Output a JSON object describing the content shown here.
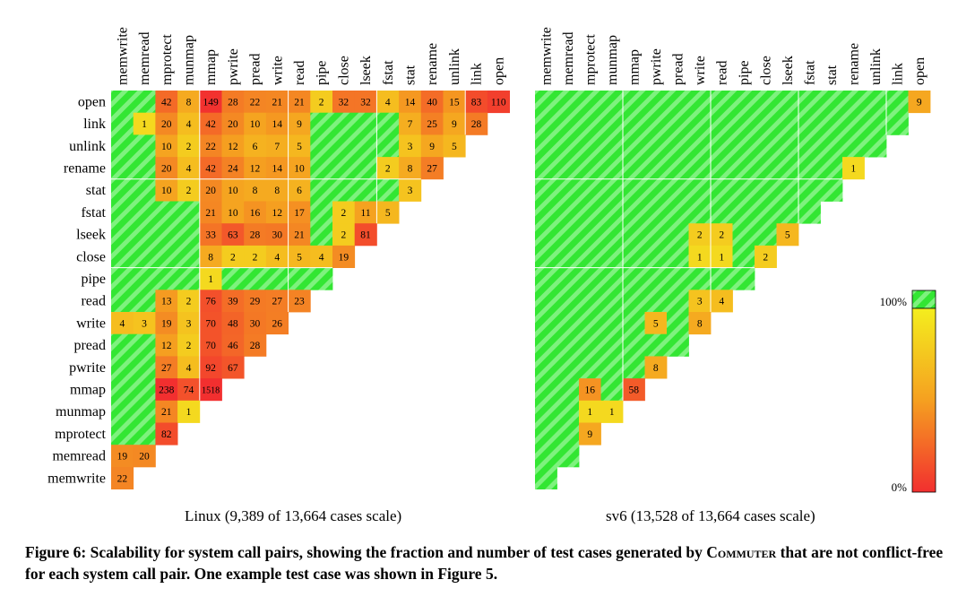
{
  "chart_data": [
    {
      "type": "heatmap",
      "title": "Linux (9,389 of 13,664 cases scale)",
      "rows": [
        "open",
        "link",
        "unlink",
        "rename",
        "stat",
        "fstat",
        "lseek",
        "close",
        "pipe",
        "read",
        "write",
        "pread",
        "pwrite",
        "mmap",
        "munmap",
        "mprotect",
        "memread",
        "memwrite"
      ],
      "columns": [
        "memwrite",
        "memread",
        "mprotect",
        "munmap",
        "mmap",
        "pwrite",
        "pread",
        "write",
        "read",
        "pipe",
        "close",
        "lseek",
        "fstat",
        "stat",
        "rename",
        "unlink",
        "link",
        "open"
      ],
      "cells": [
        [
          null,
          null,
          42,
          8,
          149,
          28,
          22,
          21,
          21,
          2,
          32,
          32,
          4,
          14,
          40,
          15,
          83,
          110
        ],
        [
          null,
          1,
          20,
          4,
          42,
          20,
          10,
          14,
          9,
          null,
          null,
          null,
          null,
          7,
          25,
          9,
          28
        ],
        [
          null,
          null,
          10,
          2,
          22,
          12,
          6,
          7,
          5,
          null,
          null,
          null,
          null,
          3,
          9,
          5
        ],
        [
          null,
          null,
          20,
          4,
          42,
          24,
          12,
          14,
          10,
          null,
          null,
          null,
          2,
          8,
          27
        ],
        [
          null,
          null,
          10,
          2,
          20,
          10,
          8,
          8,
          6,
          null,
          null,
          null,
          null,
          3
        ],
        [
          null,
          null,
          null,
          null,
          21,
          10,
          16,
          12,
          17,
          null,
          2,
          11,
          5
        ],
        [
          null,
          null,
          null,
          null,
          33,
          63,
          28,
          30,
          21,
          null,
          2,
          81
        ],
        [
          null,
          null,
          null,
          null,
          8,
          2,
          2,
          4,
          5,
          4,
          19
        ],
        [
          null,
          null,
          null,
          null,
          1,
          null,
          null,
          null,
          null,
          null
        ],
        [
          null,
          null,
          13,
          2,
          76,
          39,
          29,
          27,
          23
        ],
        [
          4,
          3,
          19,
          3,
          70,
          48,
          30,
          26
        ],
        [
          null,
          null,
          12,
          2,
          70,
          46,
          28
        ],
        [
          null,
          null,
          27,
          4,
          92,
          67
        ],
        [
          null,
          null,
          238,
          74,
          1518
        ],
        [
          null,
          null,
          21,
          1
        ],
        [
          null,
          null,
          82
        ],
        [
          19,
          20
        ],
        [
          22
        ]
      ]
    },
    {
      "type": "heatmap",
      "title": "sv6 (13,528 of 13,664 cases scale)",
      "rows": [
        "open",
        "link",
        "unlink",
        "rename",
        "stat",
        "fstat",
        "lseek",
        "close",
        "pipe",
        "read",
        "write",
        "pread",
        "pwrite",
        "mmap",
        "munmap",
        "mprotect",
        "memread",
        "memwrite"
      ],
      "columns": [
        "memwrite",
        "memread",
        "mprotect",
        "munmap",
        "mmap",
        "pwrite",
        "pread",
        "write",
        "read",
        "pipe",
        "close",
        "lseek",
        "fstat",
        "stat",
        "rename",
        "unlink",
        "link",
        "open"
      ],
      "cells": [
        [
          null,
          null,
          null,
          null,
          null,
          null,
          null,
          null,
          null,
          null,
          null,
          null,
          null,
          null,
          null,
          null,
          null,
          9
        ],
        [
          null,
          null,
          null,
          null,
          null,
          null,
          null,
          null,
          null,
          null,
          null,
          null,
          null,
          null,
          null,
          null,
          null
        ],
        [
          null,
          null,
          null,
          null,
          null,
          null,
          null,
          null,
          null,
          null,
          null,
          null,
          null,
          null,
          null,
          null
        ],
        [
          null,
          null,
          null,
          null,
          null,
          null,
          null,
          null,
          null,
          null,
          null,
          null,
          null,
          null,
          1
        ],
        [
          null,
          null,
          null,
          null,
          null,
          null,
          null,
          null,
          null,
          null,
          null,
          null,
          null,
          null
        ],
        [
          null,
          null,
          null,
          null,
          null,
          null,
          null,
          null,
          null,
          null,
          null,
          null,
          null
        ],
        [
          null,
          null,
          null,
          null,
          null,
          null,
          null,
          2,
          2,
          null,
          null,
          5
        ],
        [
          null,
          null,
          null,
          null,
          null,
          null,
          null,
          1,
          1,
          null,
          2
        ],
        [
          null,
          null,
          null,
          null,
          null,
          null,
          null,
          null,
          null,
          null
        ],
        [
          null,
          null,
          null,
          null,
          null,
          null,
          null,
          3,
          4
        ],
        [
          null,
          null,
          null,
          null,
          null,
          5,
          null,
          8
        ],
        [
          null,
          null,
          null,
          null,
          null,
          null,
          null
        ],
        [
          null,
          null,
          null,
          null,
          null,
          8
        ],
        [
          null,
          null,
          16,
          null,
          58
        ],
        [
          null,
          null,
          1,
          1
        ],
        [
          null,
          null,
          9
        ],
        [
          null,
          null
        ],
        [
          null
        ]
      ]
    }
  ],
  "colorbar": {
    "max_label": "100%",
    "min_label": "0%"
  },
  "colors": {
    "green": "#33e633",
    "green_stripe": "#7ef27e",
    "yellow": "#f4ee1e",
    "orange": "#f5a020",
    "red": "#f22f2f"
  },
  "caption": {
    "lead": "Figure 6: Scalability for system call pairs, showing the fraction and number of test cases generated by ",
    "tool_name": "Commuter",
    "tail": " that are not conflict-free for each system call pair. One example test case was shown in Figure 5."
  }
}
